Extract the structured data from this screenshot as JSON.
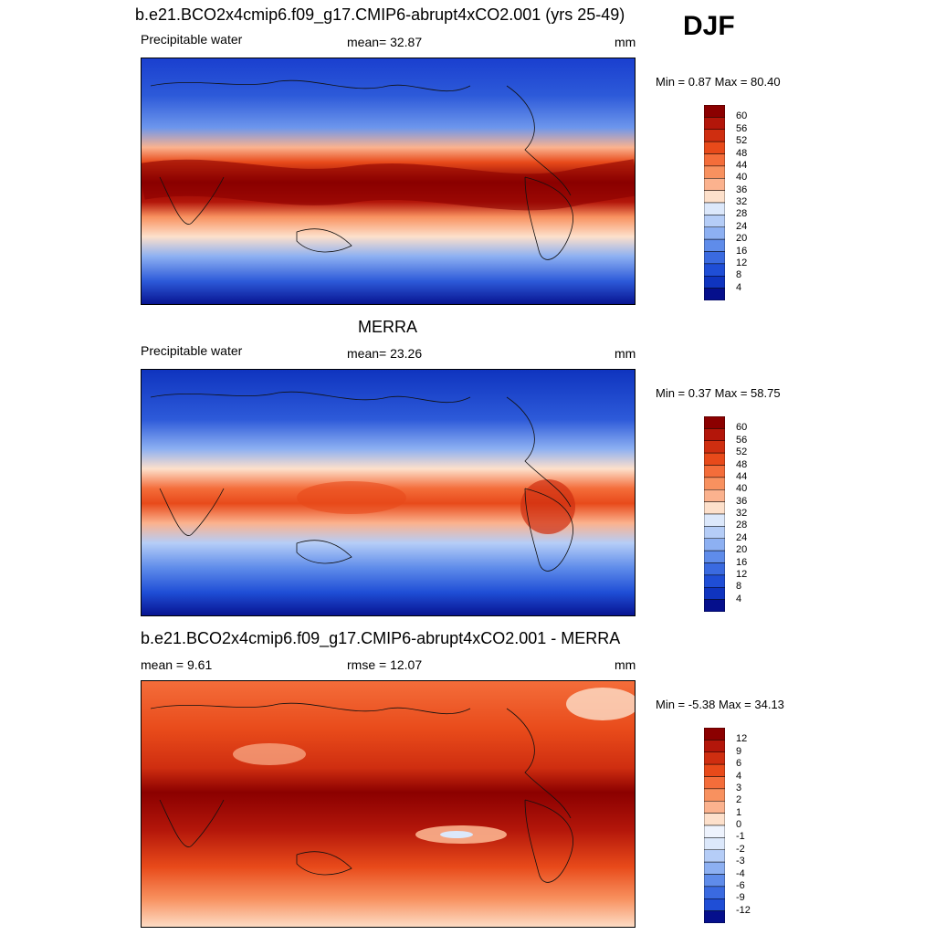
{
  "season": "DJF",
  "panels": [
    {
      "title": "b.e21.BCO2x4cmip6.f09_g17.CMIP6-abrupt4xCO2.001 (yrs 25-49)",
      "left_label": "Precipitable water",
      "center_label": "mean=  32.87",
      "units": "mm",
      "minmax": "Min =   0.87 Max =  80.40"
    },
    {
      "title": "MERRA",
      "left_label": "Precipitable water",
      "center_label": "mean=  23.26",
      "units": "mm",
      "minmax": "Min =   0.37 Max =  58.75"
    },
    {
      "title": "b.e21.BCO2x4cmip6.f09_g17.CMIP6-abrupt4xCO2.001 - MERRA",
      "left_label": "mean =   9.61",
      "center_label": "rmse =  12.07",
      "units": "mm",
      "minmax": "Min =  -5.38 Max =  34.13"
    }
  ],
  "colorbars": {
    "absolute": {
      "labels": [
        "60",
        "56",
        "52",
        "48",
        "44",
        "40",
        "36",
        "32",
        "28",
        "24",
        "20",
        "16",
        "12",
        "8",
        "4"
      ],
      "colors": [
        "#8b0000",
        "#b3160a",
        "#cf2e10",
        "#e84a1a",
        "#f46d3a",
        "#f8915f",
        "#fbb28e",
        "#fde0cb",
        "#dce8fb",
        "#b5cdf7",
        "#8db0f2",
        "#5f8cea",
        "#3a6ae0",
        "#1f4ed6",
        "#0f34bf",
        "#050f8c"
      ]
    },
    "difference": {
      "labels": [
        "12",
        "9",
        "6",
        "4",
        "3",
        "2",
        "1",
        "0",
        "-1",
        "-2",
        "-3",
        "-4",
        "-6",
        "-9",
        "-12"
      ],
      "colors": [
        "#8b0000",
        "#b3160a",
        "#cf2e10",
        "#e84a1a",
        "#f46d3a",
        "#f8915f",
        "#fbb28e",
        "#fde0cb",
        "#eef3fd",
        "#dce8fb",
        "#b5cdf7",
        "#8db0f2",
        "#5f8cea",
        "#3a6ae0",
        "#1f4ed6",
        "#050f8c"
      ]
    }
  }
}
